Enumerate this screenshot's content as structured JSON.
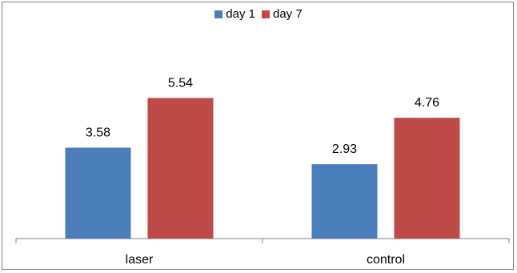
{
  "chart_data": {
    "type": "bar",
    "categories": [
      "laser",
      "control"
    ],
    "series": [
      {
        "name": "day 1",
        "color": "#4a7ebb",
        "values": [
          3.58,
          2.93
        ]
      },
      {
        "name": "day 7",
        "color": "#be4b48",
        "values": [
          5.54,
          4.76
        ]
      }
    ],
    "title": "",
    "xlabel": "",
    "ylabel": "",
    "ylim": [
      0,
      6.5
    ],
    "grid": false,
    "legend_position": "top-center",
    "data_labels": true
  }
}
